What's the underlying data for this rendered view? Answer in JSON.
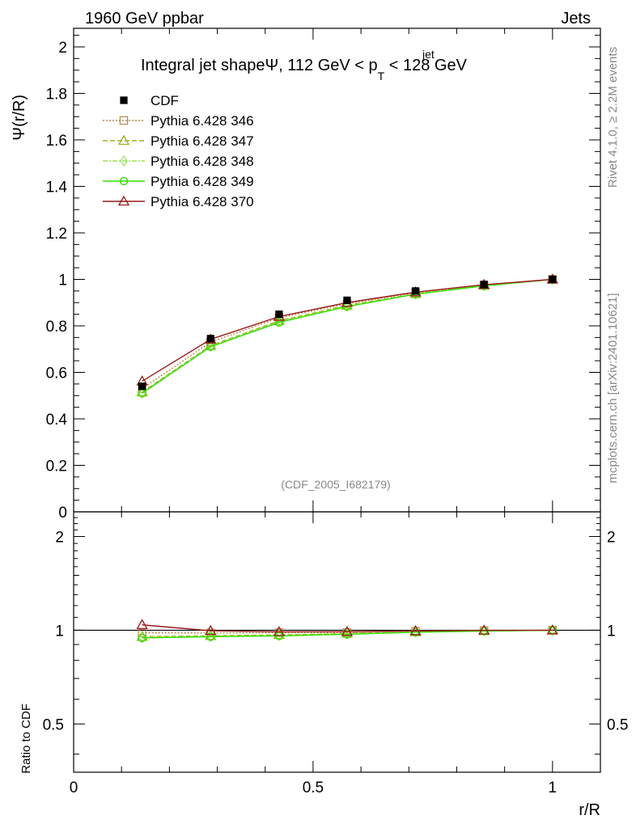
{
  "header": {
    "left": "1960 GeV ppbar",
    "right": "Jets"
  },
  "side_labels": {
    "rivet": "Rivet 4.1.0, ≥ 2.2M events",
    "mcplots": "mcplots.cern.ch [arXiv:2401.10621]"
  },
  "chart_data": {
    "type": "line",
    "title": {
      "main": "Integral jet shapeΨ, 112 GeV < p",
      "sup": "jet",
      "sub": "T",
      "tail": " < 128 GeV"
    },
    "analysis_tag": "(CDF_2005_I682179)",
    "xlabel": "r/R",
    "ylabel": "Ψ(r/R)",
    "ratio_ylabel": "Ratio to CDF",
    "xlim": [
      0,
      1.1
    ],
    "ylim": [
      0,
      2.08
    ],
    "ratio_ylim": [
      0.35,
      2.4
    ],
    "x_ticks": [
      {
        "v": 0,
        "label": "0"
      },
      {
        "v": 0.5,
        "label": "0.5"
      },
      {
        "v": 1,
        "label": "1"
      }
    ],
    "y_ticks": [
      {
        "v": 0,
        "label": "0"
      },
      {
        "v": 0.2,
        "label": "0.2"
      },
      {
        "v": 0.4,
        "label": "0.4"
      },
      {
        "v": 0.6,
        "label": "0.6"
      },
      {
        "v": 0.8,
        "label": "0.8"
      },
      {
        "v": 1,
        "label": "1"
      },
      {
        "v": 1.2,
        "label": "1.2"
      },
      {
        "v": 1.4,
        "label": "1.4"
      },
      {
        "v": 1.6,
        "label": "1.6"
      },
      {
        "v": 1.8,
        "label": "1.8"
      },
      {
        "v": 2,
        "label": "2"
      }
    ],
    "ratio_ticks": [
      {
        "v": 0.5,
        "label": "0.5"
      },
      {
        "v": 1,
        "label": "1"
      },
      {
        "v": 2,
        "label": "2"
      }
    ],
    "x": [
      0.143,
      0.286,
      0.429,
      0.571,
      0.714,
      0.857,
      1.0
    ],
    "data": {
      "name": "CDF",
      "values": [
        0.54,
        0.745,
        0.85,
        0.91,
        0.95,
        0.978,
        1.0
      ]
    },
    "series": [
      {
        "name": "Pythia 6.428 346",
        "color": "#b8864b",
        "dash": "2,2",
        "marker": "square",
        "values": [
          0.53,
          0.73,
          0.835,
          0.895,
          0.943,
          0.975,
          1.0
        ]
      },
      {
        "name": "Pythia 6.428 347",
        "color": "#99b31a",
        "dash": "6,3",
        "marker": "triangle",
        "values": [
          0.515,
          0.715,
          0.822,
          0.888,
          0.938,
          0.974,
          1.0
        ]
      },
      {
        "name": "Pythia 6.428 348",
        "color": "#99e64d",
        "dash": "6,2,2,2",
        "marker": "diamond",
        "values": [
          0.512,
          0.712,
          0.818,
          0.885,
          0.937,
          0.973,
          1.0
        ]
      },
      {
        "name": "Pythia 6.428 349",
        "color": "#33dd00",
        "dash": "",
        "marker": "circle",
        "values": [
          0.51,
          0.71,
          0.815,
          0.883,
          0.936,
          0.972,
          1.0
        ]
      },
      {
        "name": "Pythia 6.428 370",
        "color": "#991a1a",
        "dash": "",
        "marker": "triangle",
        "values": [
          0.562,
          0.742,
          0.84,
          0.9,
          0.945,
          0.977,
          1.0
        ]
      }
    ]
  }
}
